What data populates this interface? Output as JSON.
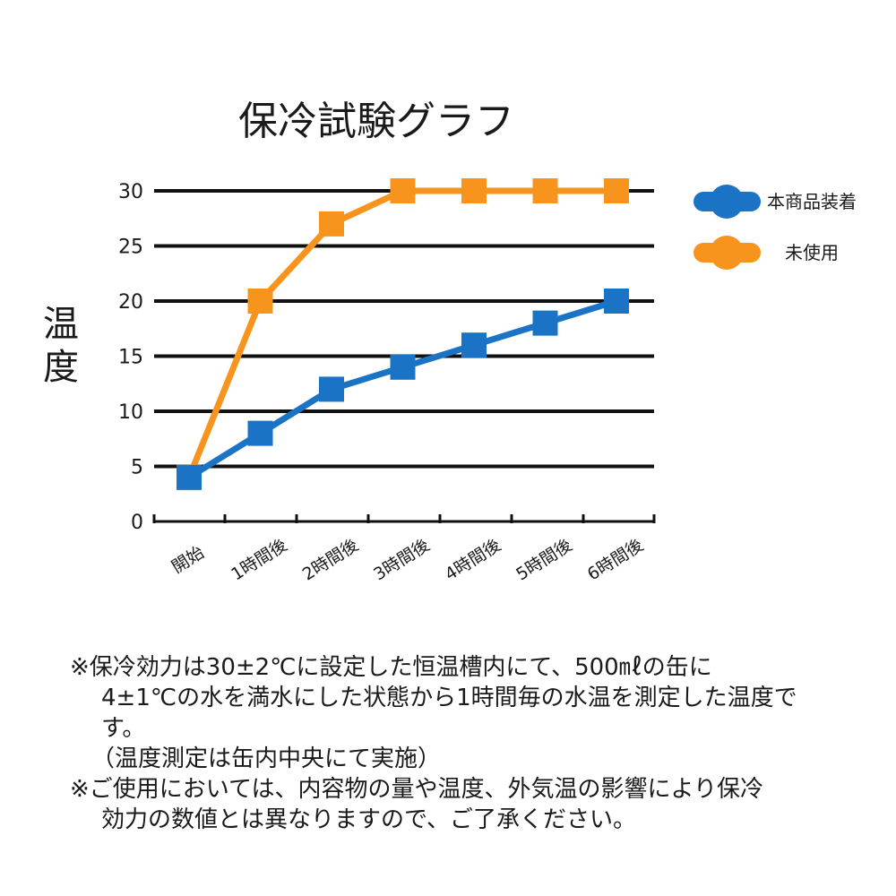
{
  "chart_data": {
    "type": "line",
    "title": "保冷試験グラフ",
    "ylabel": "温度",
    "xlabel": "",
    "categories": [
      "開始",
      "1時間後",
      "2時間後",
      "3時間後",
      "4時間後",
      "5時間後",
      "6時間後"
    ],
    "ylim": [
      0,
      30
    ],
    "yticks": [
      0,
      5,
      10,
      15,
      20,
      25,
      30
    ],
    "grid": true,
    "legend_position": "top-right",
    "series": [
      {
        "name": "本商品装着",
        "color": "#1a73c4",
        "values": [
          4,
          8,
          12,
          14,
          16,
          18,
          20
        ]
      },
      {
        "name": "未使用",
        "color": "#f7941d",
        "values": [
          4,
          20,
          27,
          30,
          30,
          30,
          30
        ]
      }
    ]
  },
  "notes": {
    "line1": "※保冷効力は30±2℃に設定した恒温槽内にて、500㎖の缶に",
    "line2": "4±1℃の水を満水にした状態から1時間毎の水温を測定した温度で",
    "line3": "す。",
    "line4": "（温度測定は缶内中央にて実施）",
    "line5": "※ご使用においては、内容物の量や温度、外気温の影響により保冷",
    "line6": "効力の数値とは異なりますので、ご了承ください。"
  }
}
